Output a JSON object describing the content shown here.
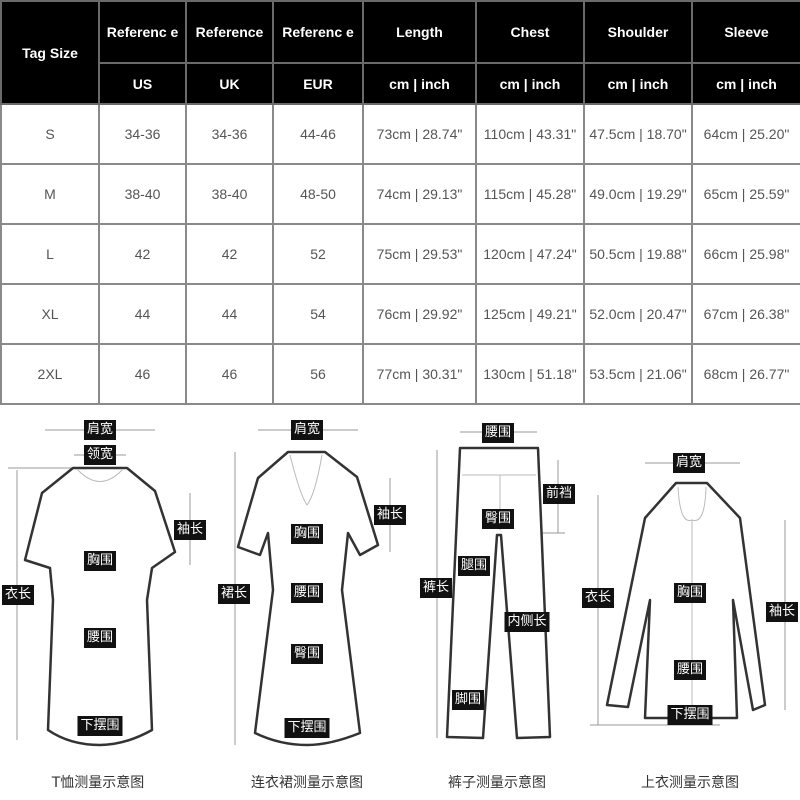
{
  "table": {
    "header_top": [
      "Tag Size",
      "Referenc e",
      "Reference",
      "Referenc e",
      "Length",
      "Chest",
      "Shoulder",
      "Sleeve"
    ],
    "header_units": [
      "US",
      "UK",
      "EUR",
      "cm | inch",
      "cm | inch",
      "cm | inch",
      "cm | inch"
    ],
    "rows": [
      [
        "S",
        "34-36",
        "34-36",
        "44-46",
        "73cm | 28.74\"",
        "110cm | 43.31\"",
        "47.5cm | 18.70\"",
        "64cm | 25.20\""
      ],
      [
        "M",
        "38-40",
        "38-40",
        "48-50",
        "74cm | 29.13\"",
        "115cm | 45.28\"",
        "49.0cm | 19.29\"",
        "65cm | 25.59\""
      ],
      [
        "L",
        "42",
        "42",
        "52",
        "75cm | 29.53\"",
        "120cm | 47.24\"",
        "50.5cm | 19.88\"",
        "66cm | 25.98\""
      ],
      [
        "XL",
        "44",
        "44",
        "54",
        "76cm | 29.92\"",
        "125cm | 49.21\"",
        "52.0cm | 20.47\"",
        "67cm | 26.38\""
      ],
      [
        "2XL",
        "46",
        "46",
        "56",
        "77cm | 30.31\"",
        "130cm | 51.18\"",
        "53.5cm | 21.06\"",
        "68cm | 26.77\""
      ]
    ]
  },
  "diagrams": {
    "tshirt": {
      "caption": "T恤测量示意图",
      "shoulder": "肩宽",
      "neck": "领宽",
      "sleeve": "袖长",
      "chest": "胸围",
      "length": "衣长",
      "waist": "腰围",
      "hem": "下摆围"
    },
    "dress": {
      "caption": "连衣裙测量示意图",
      "shoulder": "肩宽",
      "sleeve": "袖长",
      "chest": "胸围",
      "length": "裙长",
      "waist": "腰围",
      "hip": "臀围",
      "hem": "下摆围"
    },
    "pants": {
      "caption": "裤子测量示意图",
      "waist": "腰围",
      "rise": "前裆",
      "hip": "臀围",
      "thigh": "腿围",
      "length": "裤长",
      "inseam": "内侧长",
      "leg_opening": "脚围"
    },
    "shirt": {
      "caption": "上衣测量示意图",
      "shoulder": "肩宽",
      "length": "衣长",
      "chest": "胸围",
      "sleeve": "袖长",
      "waist": "腰围",
      "hem": "下摆围"
    }
  },
  "colors": {
    "header_bg": "#000000",
    "header_text": "#ffffff",
    "cell_text": "#555555",
    "border": "#8a8a8a"
  }
}
